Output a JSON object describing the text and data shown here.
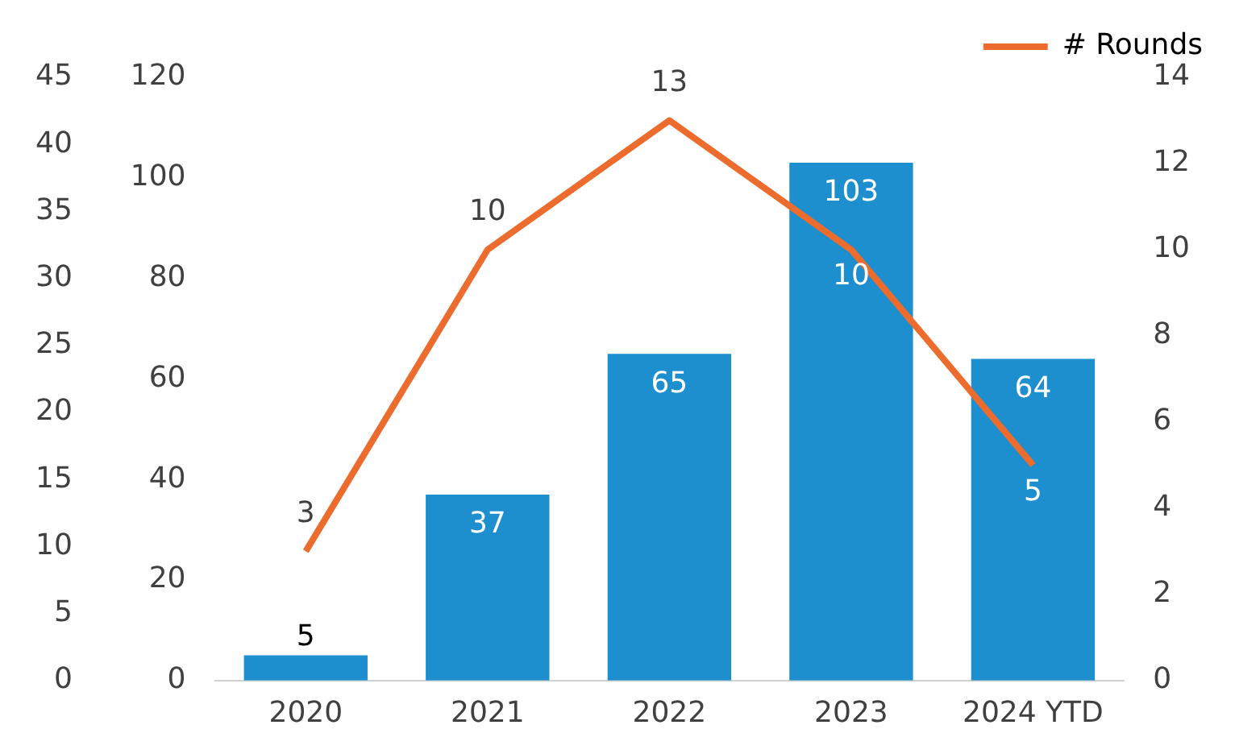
{
  "chart_data": {
    "type": "bar",
    "categories": [
      "2020",
      "2021",
      "2022",
      "2023",
      "2024 YTD"
    ],
    "series": [
      {
        "color": "#1e8fce",
        "values": [
          5,
          37,
          65,
          103,
          64
        ]
      },
      {
        "type": "line",
        "name": "# Rounds",
        "color": "#ec6c2e",
        "axis": "y2",
        "values": [
          3,
          10,
          13,
          10,
          5
        ]
      }
    ],
    "ylim": [
      0,
      120
    ],
    "yticks": [
      0,
      20,
      40,
      60,
      80,
      100,
      120
    ],
    "y2lim": [
      0,
      14
    ],
    "y2ticks": [
      0,
      2,
      4,
      6,
      8,
      10,
      12,
      14
    ],
    "y3lim": [
      0,
      45
    ],
    "y3ticks": [
      0,
      5,
      10,
      15,
      20,
      25,
      30,
      35,
      40,
      45
    ],
    "data_labels": true,
    "legend": "top right",
    "grid": false,
    "marker": "none",
    "line_style": "solid"
  }
}
